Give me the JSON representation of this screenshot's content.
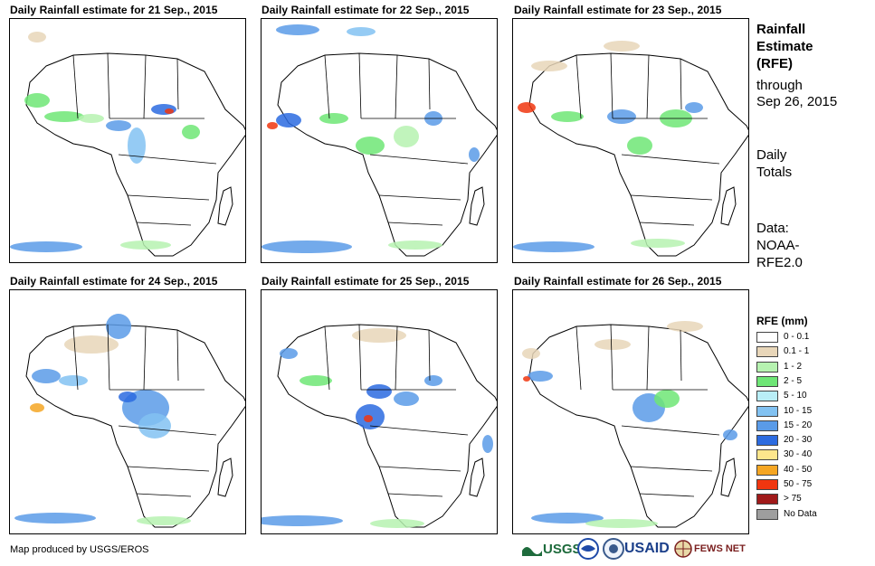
{
  "panels": [
    {
      "title": "Daily Rainfall estimate for 21 Sep., 2015"
    },
    {
      "title": "Daily Rainfall estimate for 22 Sep., 2015"
    },
    {
      "title": "Daily Rainfall estimate for 23 Sep., 2015"
    },
    {
      "title": "Daily Rainfall estimate for 24 Sep., 2015"
    },
    {
      "title": "Daily Rainfall estimate for 25 Sep., 2015"
    },
    {
      "title": "Daily Rainfall estimate for 26 Sep., 2015"
    }
  ],
  "side": {
    "title_line1": "Rainfall",
    "title_line2": "Estimate",
    "title_line3": "(RFE)",
    "through_label": "through",
    "through_date": "Sep 26, 2015",
    "totals_line1": "Daily",
    "totals_line2": "Totals",
    "data_label": "Data:",
    "data_line2": "NOAA-",
    "data_line3": "RFE2.0"
  },
  "legend": {
    "title": "RFE (mm)",
    "items": [
      {
        "label": "0 - 0.1",
        "color": "#ffffff"
      },
      {
        "label": "0.1 - 1",
        "color": "#e8d6b9"
      },
      {
        "label": "1 - 2",
        "color": "#b6f2b0"
      },
      {
        "label": "2 - 5",
        "color": "#6ee676"
      },
      {
        "label": "5 - 10",
        "color": "#b9eef7"
      },
      {
        "label": "10 - 15",
        "color": "#82c2f2"
      },
      {
        "label": "15 - 20",
        "color": "#5a9be8"
      },
      {
        "label": "20 - 30",
        "color": "#2c6be0"
      },
      {
        "label": "30 - 40",
        "color": "#fde68c"
      },
      {
        "label": "40 - 50",
        "color": "#f5a623"
      },
      {
        "label": "50 - 75",
        "color": "#f0360f"
      },
      {
        "label": "> 75",
        "color": "#a01a1a"
      },
      {
        "label": "No Data",
        "color": "#9e9e9e"
      }
    ]
  },
  "credit": "Map produced by USGS/EROS",
  "logos": [
    {
      "text": "USGS",
      "color": "#1e6b3c"
    },
    {
      "text": "NOAA",
      "color": "#1f4aa8"
    },
    {
      "text": "DOI",
      "color": "#3a5a8c"
    },
    {
      "text": "USAID",
      "color": "#1b3f8a"
    },
    {
      "text": "FEWS NET",
      "color": "#7a1f1f"
    }
  ]
}
